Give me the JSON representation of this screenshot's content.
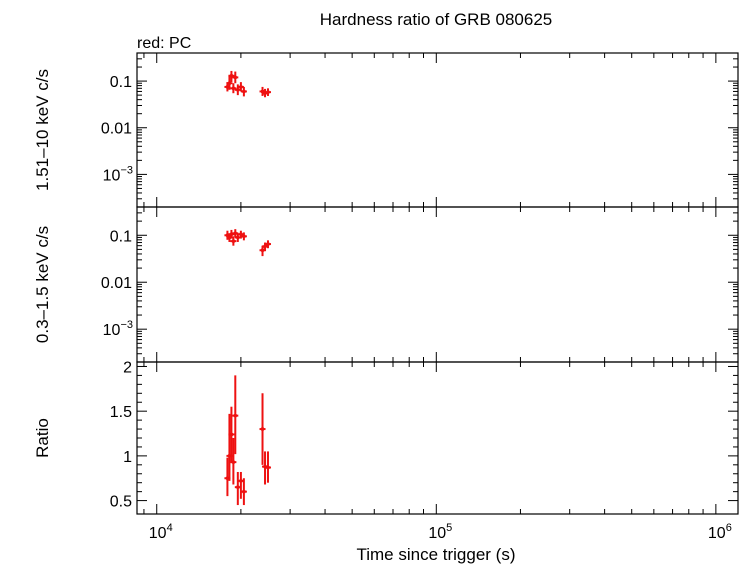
{
  "chart_data": {
    "type": "scatter",
    "title": "Hardness ratio of GRB 080625",
    "subtitle": "red: PC",
    "xlabel": "Time since trigger (s)",
    "xscale": "log",
    "xlim": [
      8500,
      1200000
    ],
    "xticks": [
      {
        "value": 10000,
        "base": "10",
        "exp": "4"
      },
      {
        "value": 100000,
        "base": "10",
        "exp": "5"
      },
      {
        "value": 1000000,
        "base": "10",
        "exp": "6"
      }
    ],
    "color": "#ee1111",
    "panels": [
      {
        "id": "hard",
        "ylabel": "1.51–10 keV c/s",
        "yscale": "log",
        "ylim": [
          0.0002,
          0.4
        ],
        "yticks": [
          {
            "value": 0.1,
            "label": "0.1"
          },
          {
            "value": 0.01,
            "label": "0.01"
          },
          {
            "value": 0.001,
            "base": "10",
            "exp": "−3"
          }
        ],
        "points": [
          {
            "x": 17900,
            "y": 0.075,
            "ylo": 0.06,
            "yhi": 0.095
          },
          {
            "x": 18200,
            "y": 0.09,
            "ylo": 0.065,
            "yhi": 0.13
          },
          {
            "x": 18500,
            "y": 0.13,
            "ylo": 0.095,
            "yhi": 0.165
          },
          {
            "x": 18800,
            "y": 0.07,
            "ylo": 0.055,
            "yhi": 0.09
          },
          {
            "x": 19100,
            "y": 0.12,
            "ylo": 0.09,
            "yhi": 0.16
          },
          {
            "x": 19500,
            "y": 0.065,
            "ylo": 0.05,
            "yhi": 0.085
          },
          {
            "x": 20000,
            "y": 0.075,
            "ylo": 0.06,
            "yhi": 0.095
          },
          {
            "x": 20500,
            "y": 0.06,
            "ylo": 0.047,
            "yhi": 0.075
          },
          {
            "x": 23900,
            "y": 0.06,
            "ylo": 0.048,
            "yhi": 0.075
          },
          {
            "x": 24400,
            "y": 0.055,
            "ylo": 0.045,
            "yhi": 0.068
          },
          {
            "x": 25000,
            "y": 0.058,
            "ylo": 0.048,
            "yhi": 0.07
          }
        ]
      },
      {
        "id": "soft",
        "ylabel": "0.3–1.5 keV c/s",
        "yscale": "log",
        "ylim": [
          0.0002,
          0.4
        ],
        "yticks": [
          {
            "value": 0.1,
            "label": "0.1"
          },
          {
            "value": 0.01,
            "label": "0.01"
          },
          {
            "value": 0.001,
            "base": "10",
            "exp": "−3"
          }
        ],
        "points": [
          {
            "x": 17900,
            "y": 0.1,
            "ylo": 0.08,
            "yhi": 0.125
          },
          {
            "x": 18200,
            "y": 0.09,
            "ylo": 0.072,
            "yhi": 0.11
          },
          {
            "x": 18500,
            "y": 0.105,
            "ylo": 0.085,
            "yhi": 0.13
          },
          {
            "x": 18800,
            "y": 0.075,
            "ylo": 0.06,
            "yhi": 0.095
          },
          {
            "x": 19100,
            "y": 0.11,
            "ylo": 0.09,
            "yhi": 0.135
          },
          {
            "x": 19500,
            "y": 0.09,
            "ylo": 0.072,
            "yhi": 0.11
          },
          {
            "x": 20000,
            "y": 0.105,
            "ylo": 0.085,
            "yhi": 0.125
          },
          {
            "x": 20500,
            "y": 0.095,
            "ylo": 0.078,
            "yhi": 0.115
          },
          {
            "x": 23900,
            "y": 0.048,
            "ylo": 0.036,
            "yhi": 0.06
          },
          {
            "x": 24400,
            "y": 0.058,
            "ylo": 0.046,
            "yhi": 0.07
          },
          {
            "x": 25000,
            "y": 0.065,
            "ylo": 0.053,
            "yhi": 0.078
          }
        ]
      },
      {
        "id": "ratio",
        "ylabel": "Ratio",
        "yscale": "linear",
        "ylim": [
          0.35,
          2.05
        ],
        "yticks": [
          {
            "value": 0.5,
            "label": "0.5"
          },
          {
            "value": 1,
            "label": "1"
          },
          {
            "value": 1.5,
            "label": "1.5"
          },
          {
            "value": 2,
            "label": "2"
          }
        ],
        "points": [
          {
            "x": 17900,
            "y": 0.75,
            "ylo": 0.55,
            "yhi": 0.98
          },
          {
            "x": 18200,
            "y": 1.0,
            "ylo": 0.72,
            "yhi": 1.47
          },
          {
            "x": 18500,
            "y": 1.24,
            "ylo": 0.92,
            "yhi": 1.55
          },
          {
            "x": 18800,
            "y": 0.93,
            "ylo": 0.68,
            "yhi": 1.2
          },
          {
            "x": 19100,
            "y": 1.45,
            "ylo": 1.02,
            "yhi": 1.9
          },
          {
            "x": 19500,
            "y": 0.65,
            "ylo": 0.45,
            "yhi": 0.82
          },
          {
            "x": 20000,
            "y": 0.72,
            "ylo": 0.52,
            "yhi": 0.82
          },
          {
            "x": 20500,
            "y": 0.6,
            "ylo": 0.45,
            "yhi": 0.75
          },
          {
            "x": 23900,
            "y": 1.3,
            "ylo": 0.9,
            "yhi": 1.7
          },
          {
            "x": 24400,
            "y": 0.88,
            "ylo": 0.68,
            "yhi": 1.05
          },
          {
            "x": 25000,
            "y": 0.87,
            "ylo": 0.7,
            "yhi": 1.05
          }
        ]
      }
    ]
  }
}
